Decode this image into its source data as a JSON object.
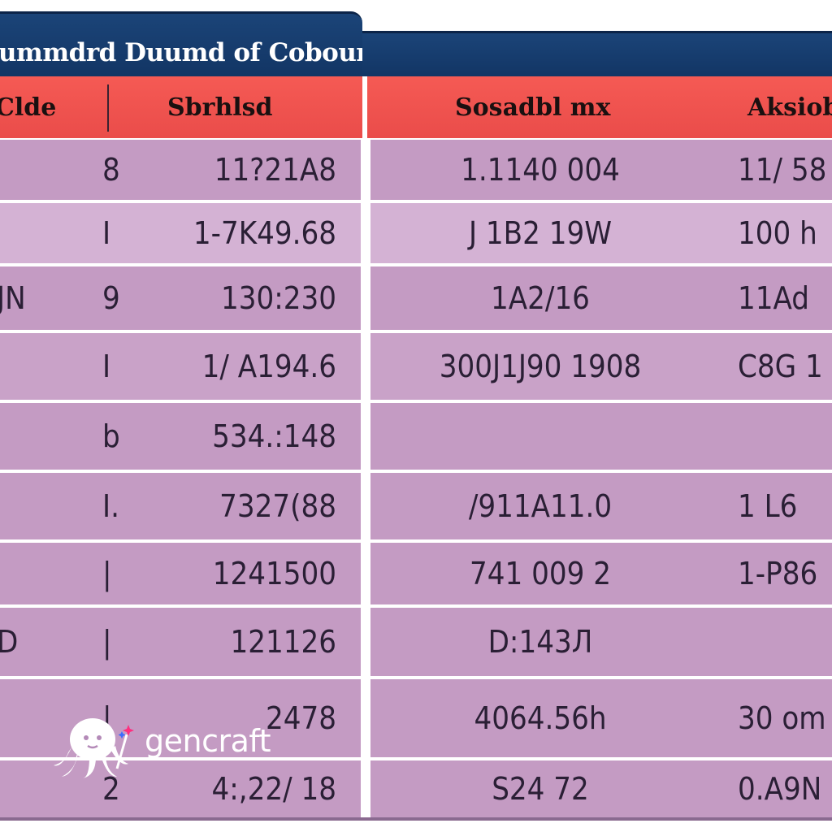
{
  "title": "ummdrd Duumd of Cobour",
  "headers": {
    "col1": "Clde",
    "col2": "Sbrhlsd",
    "col3": "Sosadbl mx",
    "col4": "Aksiob"
  },
  "rows": [
    {
      "code": "",
      "mark": "8",
      "num": "11?21A8",
      "sec": "1.1140 004",
      "add": "11/ 58"
    },
    {
      "code": "",
      "mark": "I",
      "num": "1-7K49.68",
      "sec": "J 1B2 19W",
      "add": "100 h"
    },
    {
      "code": "JN",
      "mark": "9",
      "num": "130:230",
      "sec": "1A2/16",
      "add": "11Ad"
    },
    {
      "code": "",
      "mark": "I",
      "num": "1/ A194.6",
      "sec": "300J1J90 1908",
      "add": "C8G 1"
    },
    {
      "code": "",
      "mark": "b",
      "num": "534.:148",
      "sec": "",
      "add": ""
    },
    {
      "code": "",
      "mark": "I.",
      "num": "7327(88",
      "sec": "/911A11.0",
      "add": "1 L6"
    },
    {
      "code": "",
      "mark": "|",
      "num": "1241500",
      "sec": "741 009 2",
      "add": "1-P86"
    },
    {
      "code": "D",
      "mark": "|",
      "num": "121126",
      "sec": "D:143Л",
      "add": ""
    },
    {
      "code": "",
      "mark": "|",
      "num": "2478",
      "sec": "4064.56h",
      "add": "30 om"
    },
    {
      "code": "",
      "mark": "2",
      "num": "4:,22/ 18",
      "sec": "S24 72",
      "add": "0.A9N"
    }
  ],
  "watermark": {
    "text": "gencraft",
    "icon": "octopus-logo-icon",
    "accent_pink": "#ff2e7e",
    "accent_blue": "#3b6cff"
  },
  "colors": {
    "title_bg": "#163c6e",
    "header_bg": "#f0524f",
    "row_bg": "#c49bc3",
    "row_light_bg": "#d4b2d4"
  }
}
